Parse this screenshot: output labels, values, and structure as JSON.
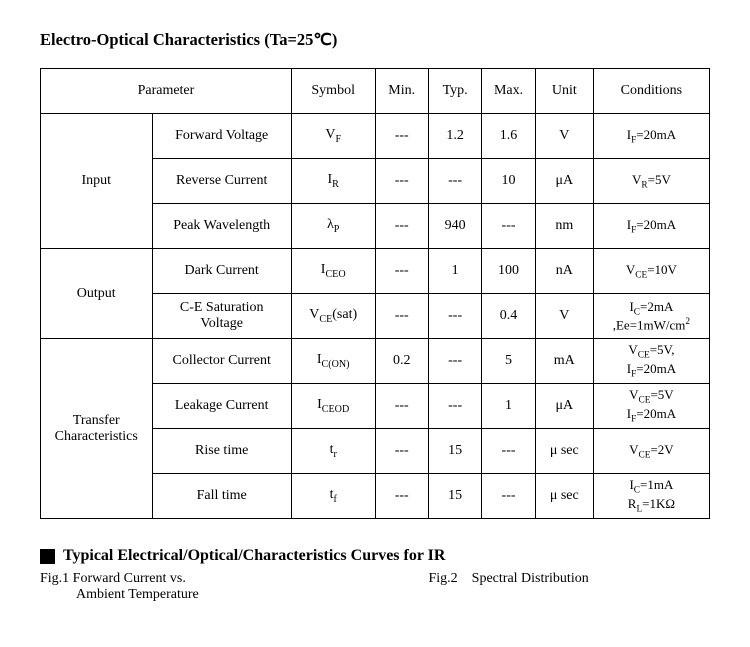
{
  "title_html": "Electro-Optical Characteristics (Ta=25&#8451;)",
  "headers": {
    "parameter": "Parameter",
    "symbol": "Symbol",
    "min": "Min.",
    "typ": "Typ.",
    "max": "Max.",
    "unit": "Unit",
    "conditions": "Conditions"
  },
  "sections": {
    "input": "Input",
    "output": "Output",
    "transfer_l1": "Transfer",
    "transfer_l2": "Characteristics"
  },
  "rows": {
    "fv": {
      "param": "Forward Voltage",
      "symbol": "V<sub>F</sub>",
      "min": "---",
      "typ": "1.2",
      "max": "1.6",
      "unit": "V",
      "cond": "I<sub>F</sub>=20mA"
    },
    "rc": {
      "param": "Reverse Current",
      "symbol": "I<sub>R</sub>",
      "min": "---",
      "typ": "---",
      "max": "10",
      "unit": "<span class='greek'>&#956;</span>A",
      "cond": "V<sub>R</sub>=5V"
    },
    "pw": {
      "param": "Peak Wavelength",
      "symbol": "<span class='greek'>&#955;</span><sub>P</sub>",
      "min": "---",
      "typ": "940",
      "max": "---",
      "unit": "nm",
      "cond": "I<sub>F</sub>=20mA"
    },
    "dc": {
      "param": "Dark Current",
      "symbol": "I<sub>CEO</sub>",
      "min": "---",
      "typ": "1",
      "max": "100",
      "unit": "nA",
      "cond": "V<sub>CE</sub>=10V"
    },
    "sat": {
      "param": "C-E Saturation<br>Voltage",
      "symbol": "V<sub>CE</sub>(sat)",
      "min": "---",
      "typ": "---",
      "max": "0.4",
      "unit": "V",
      "cond": "I<sub>C</sub>=2mA<br>,Ee=1mW/cm<sup>2</sup>"
    },
    "cc": {
      "param": "Collector Current",
      "symbol": "I<sub>C(ON)</sub>",
      "min": "0.2",
      "typ": "---",
      "max": "5",
      "unit": "mA",
      "cond": "V<sub>CE</sub>=5V,<br>I<sub>F</sub>=20mA"
    },
    "lc": {
      "param": "Leakage Current",
      "symbol": "I<sub>CEOD</sub>",
      "min": "---",
      "typ": "---",
      "max": "1",
      "unit": "<span class='greek'>&#956;</span>A",
      "cond": "V<sub>CE</sub>=5V<br>I<sub>F</sub>=20mA"
    },
    "rt": {
      "param": "Rise time",
      "symbol": "t<sub>r</sub>",
      "min": "---",
      "typ": "15",
      "max": "---",
      "unit": "<span class='greek'>&#956;</span> sec",
      "cond": "V<sub>CE</sub>=2V"
    },
    "ft": {
      "param": "Fall time",
      "symbol": "t<sub>f</sub>",
      "min": "---",
      "typ": "15",
      "max": "---",
      "unit": "<span class='greek'>&#956;</span> sec",
      "cond": "I<sub>C</sub>=1mA<br>R<sub>L</sub>=1K&#937;"
    }
  },
  "curves_heading": "Typical Electrical/Optical/Characteristics Curves for IR",
  "fig1_l1": "Fig.1 Forward Current vs.",
  "fig1_l2": "Ambient Temperature",
  "fig2": "Fig.2 Spectral Distribution",
  "style": {
    "page_bg": "#ffffff",
    "text_color": "#000000",
    "border_color": "#000000",
    "title_fontsize_pt": 12.5,
    "body_fontsize_pt": 10.5,
    "font_family": "Times New Roman"
  }
}
